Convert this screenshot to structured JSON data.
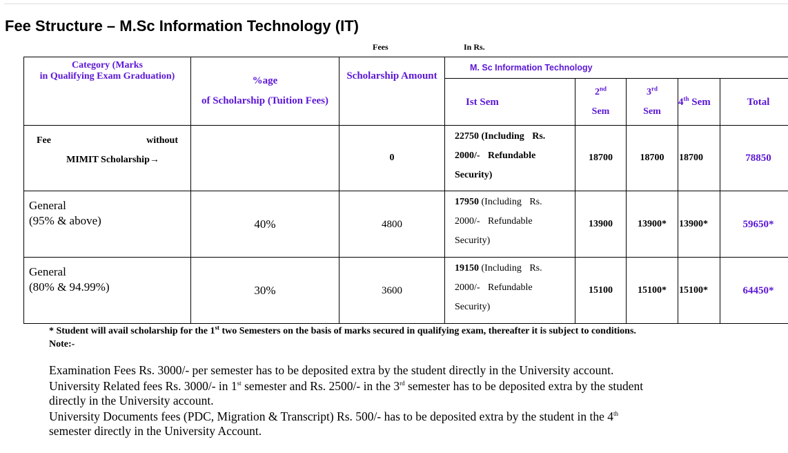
{
  "title": "Fee Structure – M.Sc Information Technology (IT)",
  "top_labels": [
    "Fees",
    "In Rs."
  ],
  "table": {
    "header": {
      "category": [
        "Category (Marks",
        "in Qualifying Exam Graduation)"
      ],
      "percentage": [
        "%age",
        "of Scholarship (Tuition Fees)"
      ],
      "scholarship": "Scholarship Amount",
      "program": "M. Sc Information Technology",
      "sem1": "Ist Sem",
      "sem2": [
        "2",
        "nd",
        "Sem"
      ],
      "sem3": [
        "3",
        "rd",
        "Sem"
      ],
      "sem4": [
        "4",
        "th",
        " Sem"
      ],
      "total": "Total"
    },
    "rows": [
      {
        "category": [
          "Fee without",
          "MIMIT Scholarship→"
        ],
        "scholarship": "0",
        "sem1": [
          "22750",
          "(Including Rs. 2000/- Refundable Security)"
        ],
        "sem2": "18700",
        "sem3": "18700",
        "sem4": "18700",
        "total": "78850"
      },
      {
        "category": [
          "General",
          "(95% & above)"
        ],
        "percentage": "40%",
        "scholarship": "4800",
        "sem1": [
          "17950",
          "(Including Rs. 2000/- Refundable Security)"
        ],
        "sem2": "13900",
        "sem3": "13900*",
        "sem4": "13900*",
        "total": "59650*"
      },
      {
        "category": [
          "General",
          "(80% & 94.99%)"
        ],
        "percentage": "30%",
        "scholarship": "3600",
        "sem1": [
          "19150",
          "(Including Rs. 2000/- Refundable Security)"
        ],
        "sem2": "15100",
        "sem3": "15100*",
        "sem4": "15100*",
        "total": "64450*"
      }
    ]
  },
  "footnote": [
    "* Student will avail scholarship for the 1",
    "st",
    " two Semesters on the basis of marks secured in qualifying exam, thereafter it is subject to conditions."
  ],
  "note_label": "Note:-",
  "notes": [
    [
      "Examination Fees Rs. 3000/- per semester has to be deposited extra by the student directly in the University account."
    ],
    [
      "University Related fees Rs. 3000/- in 1",
      "st",
      " semester and Rs. 2500/- in the 3",
      "rd",
      " semester has to be deposited extra by the student directly in the University account."
    ],
    [
      "University Documents fees (PDC, Migration & Transcript) Rs. 500/- has to be deposited extra by the student in the 4",
      "th",
      " semester directly in the University Account."
    ]
  ]
}
